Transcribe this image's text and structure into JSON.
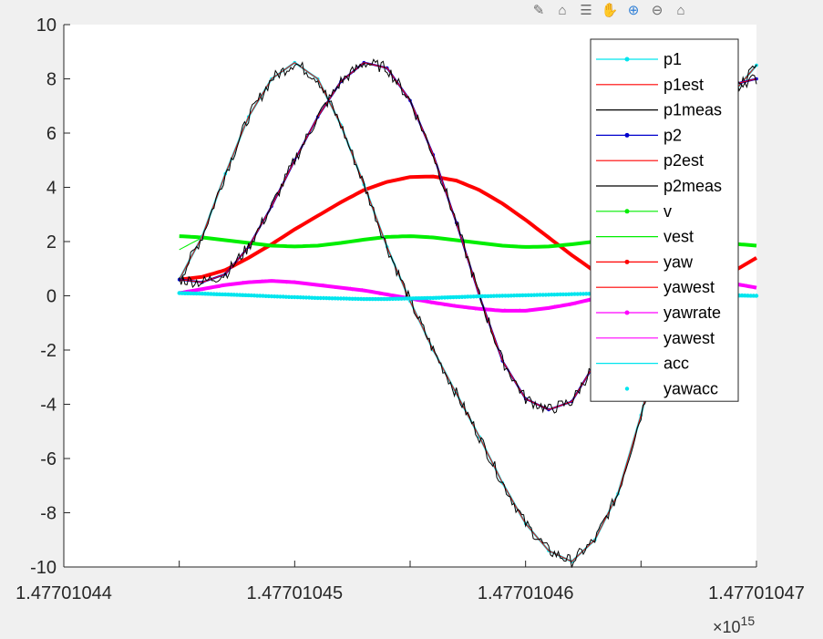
{
  "toolbar": {
    "icons": [
      "brush-icon",
      "data-tips-icon",
      "datatip-list-icon",
      "pan-icon",
      "zoom-in-icon",
      "zoom-out-icon",
      "home-icon"
    ]
  },
  "chart_data": {
    "type": "line",
    "title": "",
    "xlabel": "",
    "ylabel": "",
    "x_exponent_label": "×10",
    "x_exponent_power": "15",
    "x_ticks": [
      "1.47701044",
      "1.47701045",
      "1.47701046",
      "1.47701047"
    ],
    "y_ticks": [
      "-10",
      "-8",
      "-6",
      "-4",
      "-2",
      "0",
      "2",
      "4",
      "6",
      "8",
      "10"
    ],
    "xlim": [
      1.47701044,
      1.47701047
    ],
    "ylim": [
      -10,
      10
    ],
    "grid": false,
    "legend_position": "top-right",
    "x": [
      1.477010445,
      1.477010446,
      1.477010447,
      1.477010448,
      1.477010449,
      1.47701045,
      1.477010451,
      1.477010452,
      1.477010453,
      1.477010454,
      1.477010455,
      1.477010456,
      1.477010457,
      1.477010458,
      1.477010459,
      1.47701046,
      1.477010461,
      1.477010462,
      1.477010463,
      1.477010464,
      1.477010465,
      1.477010466,
      1.477010467,
      1.477010468,
      1.477010469,
      1.47701047
    ],
    "series": [
      {
        "name": "p1",
        "color": "#00e5ee",
        "style": "line-dot",
        "values": [
          0.6,
          2.2,
          4.5,
          6.6,
          8.0,
          8.6,
          8.0,
          6.3,
          4.1,
          1.8,
          -0.2,
          -2.0,
          -3.6,
          -5.2,
          -6.9,
          -8.4,
          -9.4,
          -9.8,
          -9.0,
          -7.3,
          -4.4,
          -1.0,
          2.4,
          5.4,
          7.5,
          8.5
        ]
      },
      {
        "name": "p1est",
        "color": "#ff0000",
        "style": "line-thin",
        "values": [
          0.6,
          2.2,
          4.5,
          6.6,
          8.0,
          8.6,
          8.0,
          6.3,
          4.1,
          1.8,
          -0.2,
          -2.0,
          -3.6,
          -5.2,
          -6.9,
          -8.4,
          -9.4,
          -9.8,
          -9.0,
          -7.3,
          -4.4,
          -1.0,
          2.4,
          5.4,
          7.5,
          8.5
        ]
      },
      {
        "name": "p1meas",
        "color": "#000000",
        "style": "line-noisy",
        "values": [
          0.6,
          2.2,
          4.5,
          6.6,
          8.0,
          8.6,
          8.0,
          6.3,
          4.1,
          1.8,
          -0.2,
          -2.0,
          -3.6,
          -5.2,
          -6.9,
          -8.4,
          -9.4,
          -9.8,
          -9.0,
          -7.3,
          -4.4,
          -1.0,
          2.4,
          5.4,
          7.5,
          8.5
        ]
      },
      {
        "name": "p2",
        "color": "#0000cd",
        "style": "line-dot",
        "values": [
          0.6,
          0.5,
          0.8,
          1.8,
          3.3,
          5.0,
          6.6,
          7.9,
          8.6,
          8.4,
          7.2,
          5.2,
          2.7,
          0.0,
          -2.4,
          -3.8,
          -4.2,
          -3.9,
          -2.5,
          0.0,
          2.4,
          4.5,
          6.1,
          7.2,
          7.8,
          8.0
        ]
      },
      {
        "name": "p2est",
        "color": "#ff0000",
        "style": "line-thin",
        "values": [
          0.6,
          0.5,
          0.8,
          1.8,
          3.3,
          5.0,
          6.6,
          7.9,
          8.6,
          8.4,
          7.2,
          5.2,
          2.7,
          0.0,
          -2.4,
          -3.8,
          -4.2,
          -3.9,
          -2.5,
          0.0,
          2.4,
          4.5,
          6.1,
          7.2,
          7.8,
          8.0
        ]
      },
      {
        "name": "p2meas",
        "color": "#000000",
        "style": "line-noisy",
        "values": [
          0.6,
          0.5,
          0.8,
          1.8,
          3.3,
          5.0,
          6.6,
          7.9,
          8.6,
          8.4,
          7.2,
          5.2,
          2.7,
          0.0,
          -2.4,
          -3.8,
          -4.2,
          -3.9,
          -2.5,
          0.0,
          2.4,
          4.5,
          6.1,
          7.2,
          7.8,
          8.0
        ]
      },
      {
        "name": "v",
        "color": "#00ee00",
        "style": "line-dot",
        "values": [
          2.2,
          2.15,
          2.05,
          1.95,
          1.85,
          1.82,
          1.85,
          1.95,
          2.07,
          2.17,
          2.2,
          2.15,
          2.05,
          1.95,
          1.85,
          1.8,
          1.82,
          1.9,
          2.0,
          2.1,
          2.2,
          2.2,
          2.12,
          2.02,
          1.92,
          1.85
        ]
      },
      {
        "name": "vest",
        "color": "#00ee00",
        "style": "line-thin",
        "values": [
          1.7,
          2.15,
          2.05,
          1.95,
          1.85,
          1.82,
          1.85,
          1.95,
          2.07,
          2.17,
          2.2,
          2.15,
          2.05,
          1.95,
          1.85,
          1.8,
          1.82,
          1.9,
          2.0,
          2.1,
          2.2,
          2.2,
          2.12,
          2.02,
          1.92,
          1.85
        ]
      },
      {
        "name": "yaw",
        "color": "#ff0000",
        "style": "line-dot",
        "values": [
          0.6,
          0.7,
          0.95,
          1.4,
          1.9,
          2.45,
          2.95,
          3.45,
          3.9,
          4.2,
          4.38,
          4.4,
          4.25,
          3.9,
          3.4,
          2.8,
          2.15,
          1.5,
          0.9,
          0.4,
          0.1,
          0.0,
          0.1,
          0.4,
          0.9,
          1.4
        ]
      },
      {
        "name": "yawest",
        "color": "#ff0000",
        "style": "line-thin",
        "values": [
          0.6,
          0.7,
          0.95,
          1.4,
          1.9,
          2.45,
          2.95,
          3.45,
          3.9,
          4.2,
          4.38,
          4.4,
          4.25,
          3.9,
          3.4,
          2.8,
          2.15,
          1.5,
          0.9,
          0.4,
          0.1,
          0.0,
          0.1,
          0.4,
          0.9,
          1.4
        ]
      },
      {
        "name": "yawrate",
        "color": "#ff00ff",
        "style": "line-dot",
        "values": [
          0.1,
          0.25,
          0.4,
          0.5,
          0.55,
          0.5,
          0.4,
          0.3,
          0.2,
          0.05,
          -0.1,
          -0.25,
          -0.38,
          -0.48,
          -0.55,
          -0.55,
          -0.45,
          -0.3,
          -0.1,
          0.1,
          0.3,
          0.45,
          0.55,
          0.55,
          0.45,
          0.3
        ]
      },
      {
        "name": "yawest",
        "color": "#ff00ff",
        "style": "line-noisy-small",
        "values": [
          0.1,
          0.25,
          0.4,
          0.5,
          0.55,
          0.5,
          0.4,
          0.3,
          0.2,
          0.05,
          -0.1,
          -0.25,
          -0.38,
          -0.48,
          -0.55,
          -0.55,
          -0.45,
          -0.3,
          -0.1,
          0.1,
          0.3,
          0.45,
          0.55,
          0.55,
          0.45,
          0.3
        ]
      },
      {
        "name": "acc",
        "color": "#00e5ee",
        "style": "line-thin",
        "values": [
          0.05,
          0.03,
          0.0,
          -0.03,
          -0.05,
          -0.07,
          -0.08,
          -0.08,
          -0.08,
          -0.07,
          -0.05,
          -0.03,
          0.0,
          0.02,
          0.04,
          0.06,
          0.07,
          0.08,
          0.08,
          0.07,
          0.05,
          0.03,
          0.0,
          -0.02,
          -0.04,
          -0.05
        ]
      },
      {
        "name": "yawacc",
        "color": "#00e5ee",
        "style": "dots",
        "values": [
          0.1,
          0.08,
          0.05,
          0.02,
          -0.02,
          -0.05,
          -0.08,
          -0.1,
          -0.12,
          -0.12,
          -0.1,
          -0.08,
          -0.05,
          -0.02,
          0.0,
          0.02,
          0.04,
          0.06,
          0.08,
          0.1,
          0.1,
          0.1,
          0.08,
          0.05,
          0.02,
          0.0
        ]
      }
    ]
  }
}
